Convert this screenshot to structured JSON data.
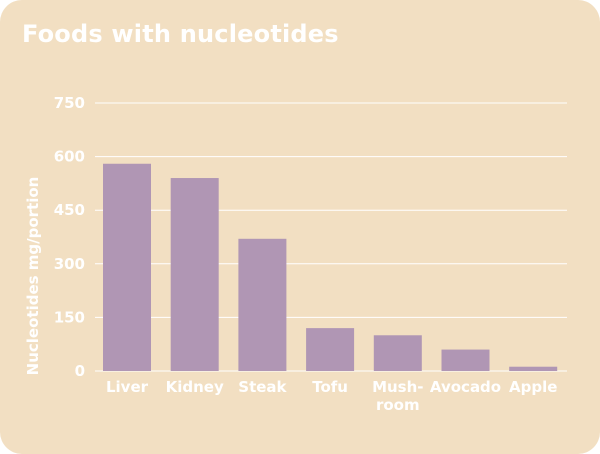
{
  "chart_data": {
    "type": "bar",
    "title": "Foods with nucleotides",
    "ylabel": "Nucleotides mg/portion",
    "xlabel": "",
    "categories": [
      [
        "Liver"
      ],
      [
        "Kidney"
      ],
      [
        "Steak"
      ],
      [
        "Tofu"
      ],
      [
        "Mush-",
        "room"
      ],
      [
        "Avocado"
      ],
      [
        "Apple"
      ]
    ],
    "values": [
      580,
      540,
      370,
      120,
      100,
      60,
      12
    ],
    "ylim": [
      0,
      750
    ],
    "yticks": [
      0,
      150,
      300,
      450,
      600,
      750
    ],
    "grid": true,
    "colors": {
      "background": "#f2dfc2",
      "bar": "#b096b4",
      "grid": "#ffffff",
      "text": "#ffffff"
    }
  }
}
